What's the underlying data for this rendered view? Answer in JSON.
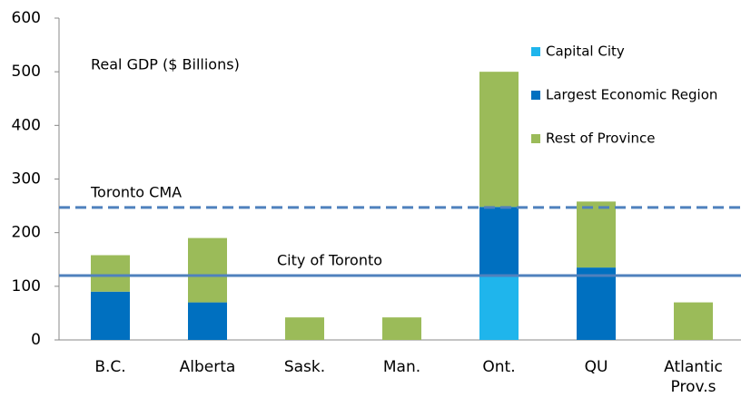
{
  "chart_data": {
    "type": "stacked_bar",
    "title": "Real GDP ($ Billions)",
    "categories": [
      "B.C.",
      "Alberta",
      "Sask.",
      "Man.",
      "Ont.",
      "QU",
      "Atlantic Prov.s"
    ],
    "series": [
      {
        "name": "Capital City",
        "color": "#1fb5ec",
        "values": [
          0,
          0,
          0,
          0,
          120,
          0,
          0
        ]
      },
      {
        "name": "Largest Economic Region",
        "color": "#0070c0",
        "values": [
          90,
          70,
          0,
          0,
          128,
          135,
          0
        ]
      },
      {
        "name": "Rest of Province",
        "color": "#9bbb59",
        "values": [
          68,
          120,
          42,
          42,
          252,
          123,
          70
        ]
      }
    ],
    "reference_lines": [
      {
        "label": "Toronto CMA",
        "value": 247,
        "color": "#4f81bd",
        "dashed": true
      },
      {
        "label": "City of Toronto",
        "value": 120,
        "color": "#4f81bd",
        "dashed": false
      }
    ],
    "ylim": [
      0,
      600
    ],
    "yticks": [
      0,
      100,
      200,
      300,
      400,
      500,
      600
    ],
    "grid": false,
    "legend": "upper right"
  }
}
